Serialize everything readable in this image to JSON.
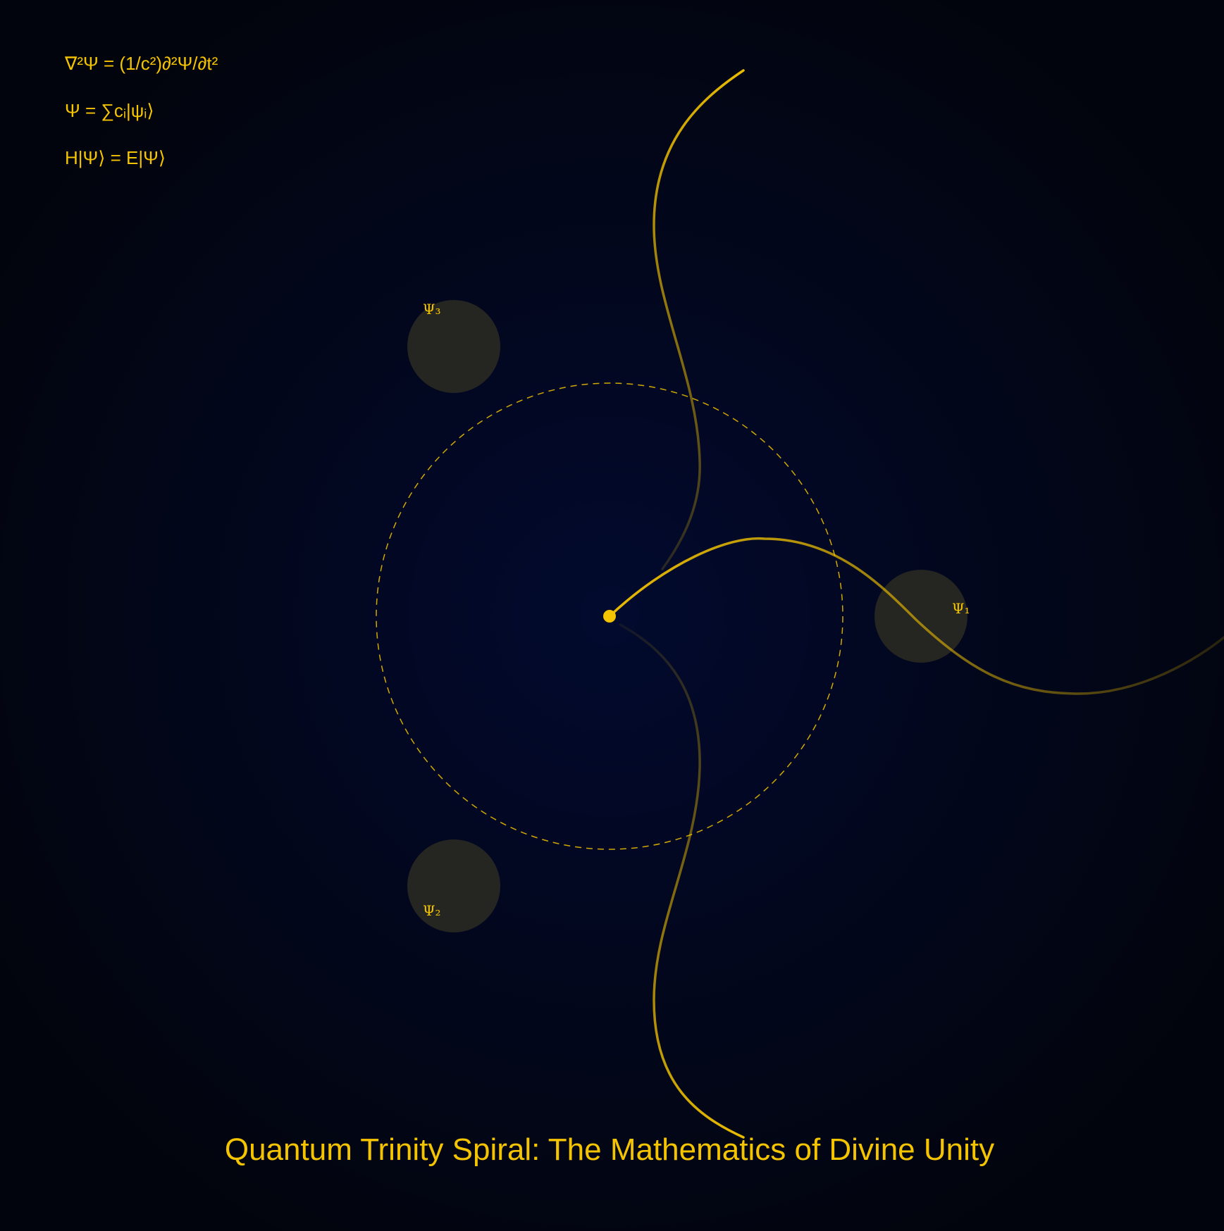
{
  "equations": [
    "∇²Ψ = (1/c²)∂²Ψ/∂t²",
    "Ψ = ∑cᵢ|ψᵢ⟩",
    "H|Ψ⟩ = E|Ψ⟩"
  ],
  "states": [
    {
      "label": "Ψ₁"
    },
    {
      "label": "Ψ₂"
    },
    {
      "label": "Ψ₃"
    }
  ],
  "title": "Quantum Trinity Spiral: The Mathematics of Divine Unity",
  "colors": {
    "background_center": "#020a2e",
    "background_edge": "#02040d",
    "gold": "#f5c400",
    "node_fill": "#2b2a22"
  }
}
